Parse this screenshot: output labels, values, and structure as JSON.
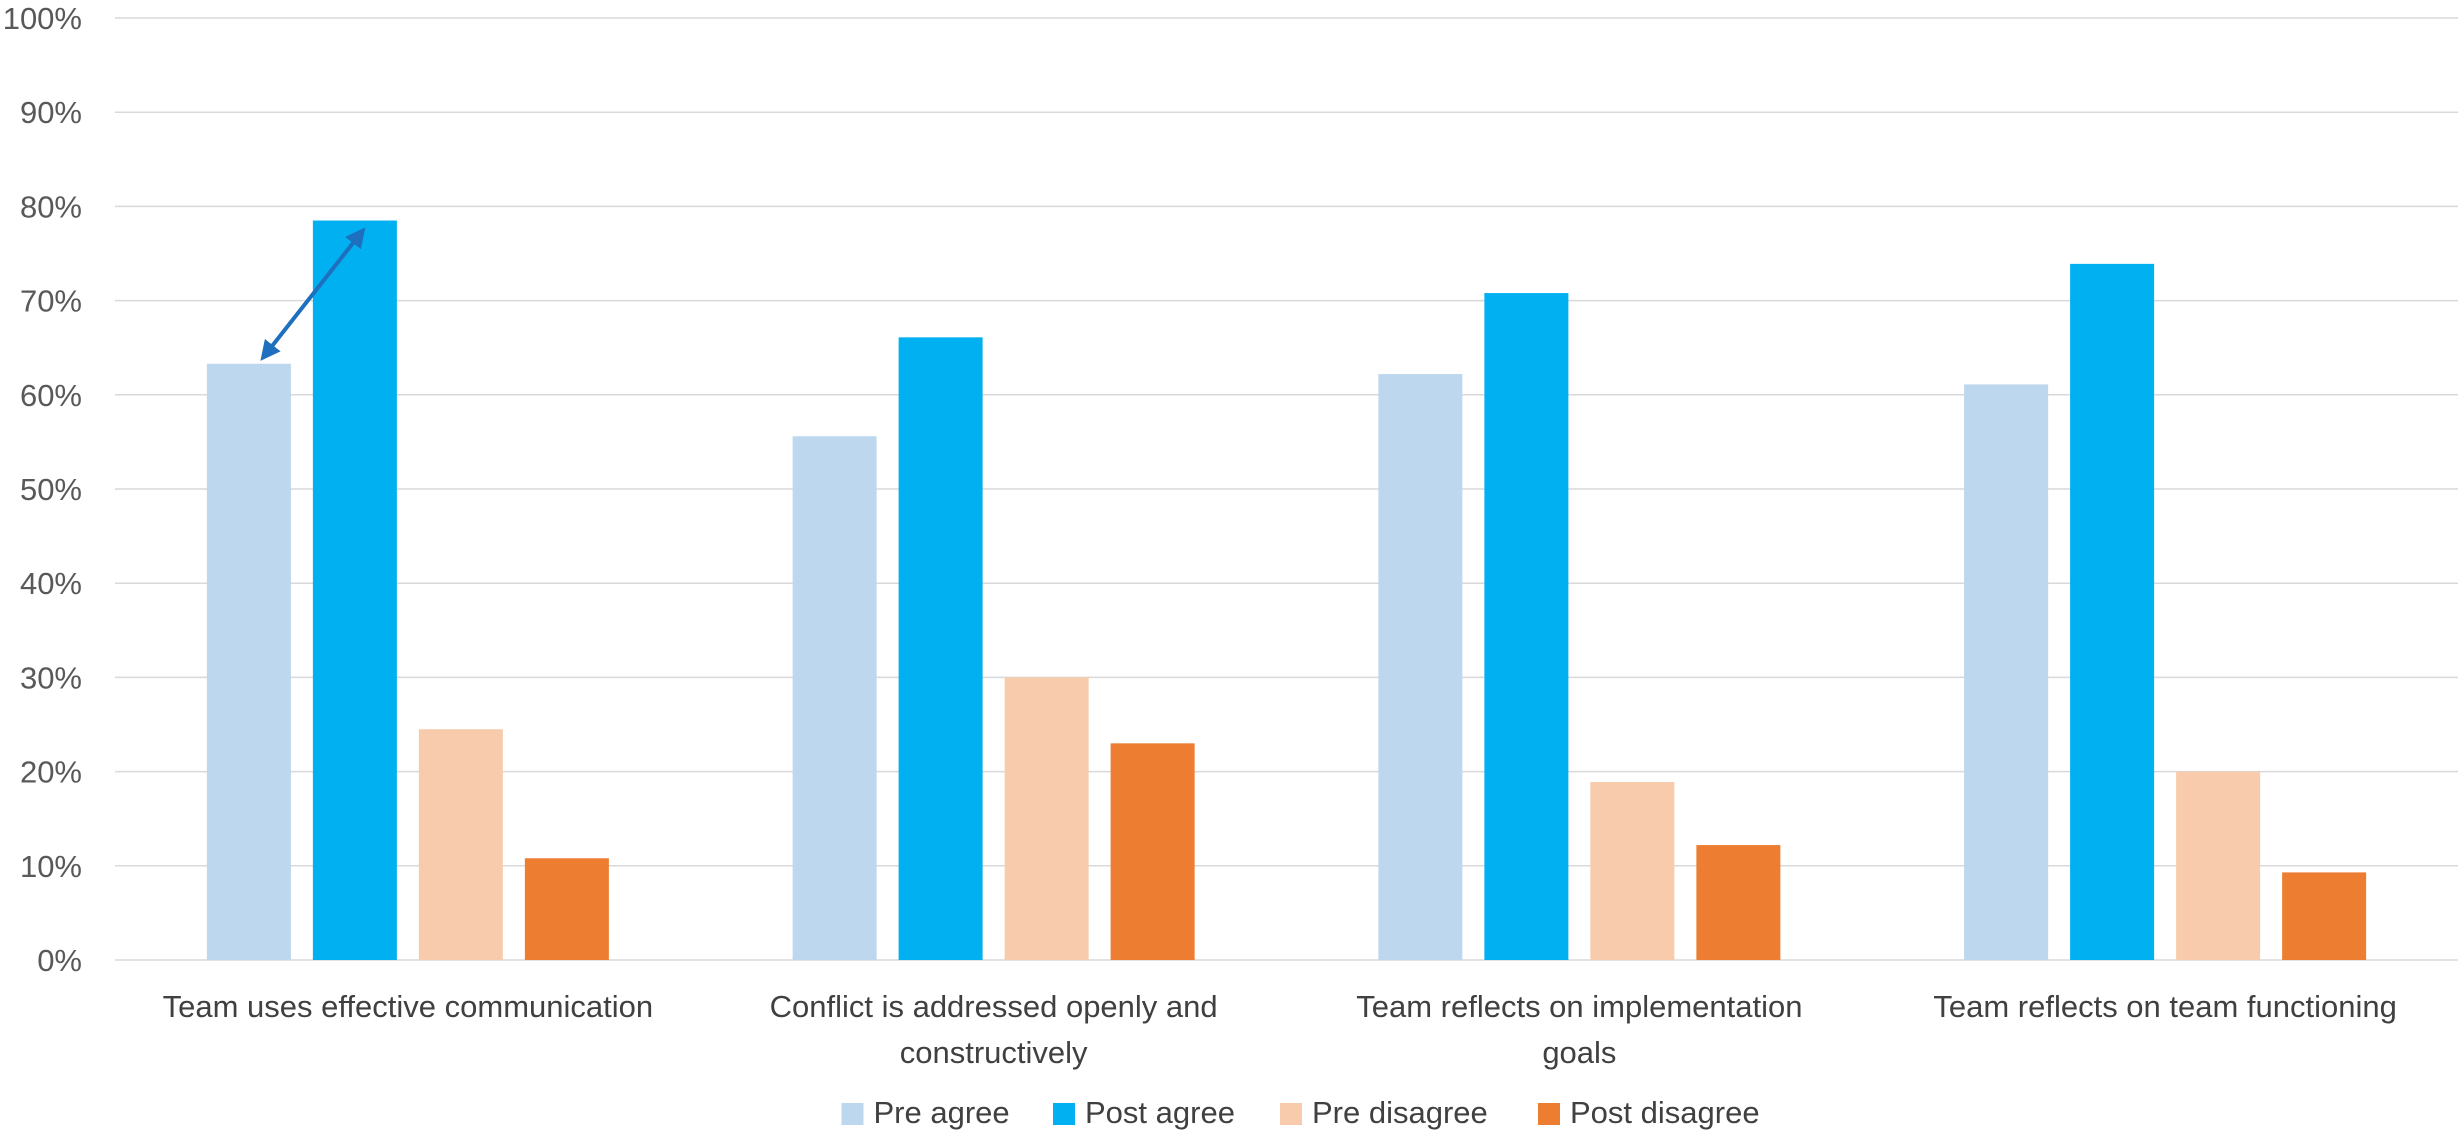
{
  "chart_data": {
    "type": "bar",
    "categories": [
      [
        "Team uses effective communication"
      ],
      [
        "Conflict is addressed openly and",
        "constructively"
      ],
      [
        "Team reflects on implementation",
        "goals"
      ],
      [
        "Team reflects on team functioning"
      ]
    ],
    "series": [
      {
        "name": "Pre agree",
        "color": "#BDD7EE",
        "values": [
          0.633,
          0.556,
          0.622,
          0.611
        ]
      },
      {
        "name": "Post agree",
        "color": "#00B0F0",
        "values": [
          0.785,
          0.661,
          0.708,
          0.739
        ]
      },
      {
        "name": "Pre disagree",
        "color": "#F8CBAD",
        "values": [
          0.245,
          0.3,
          0.189,
          0.2
        ]
      },
      {
        "name": "Post disagree",
        "color": "#ED7D31",
        "values": [
          0.108,
          0.23,
          0.122,
          0.093
        ]
      }
    ],
    "ylim": [
      0,
      1
    ],
    "yticks": [
      "0%",
      "10%",
      "20%",
      "30%",
      "40%",
      "50%",
      "60%",
      "70%",
      "80%",
      "90%",
      "100%"
    ],
    "grid": true,
    "legend_position": "bottom",
    "annotation": {
      "type": "double-arrow",
      "from_series": 0,
      "to_series": 1,
      "category": 0,
      "color": "#1F6FBF"
    }
  }
}
